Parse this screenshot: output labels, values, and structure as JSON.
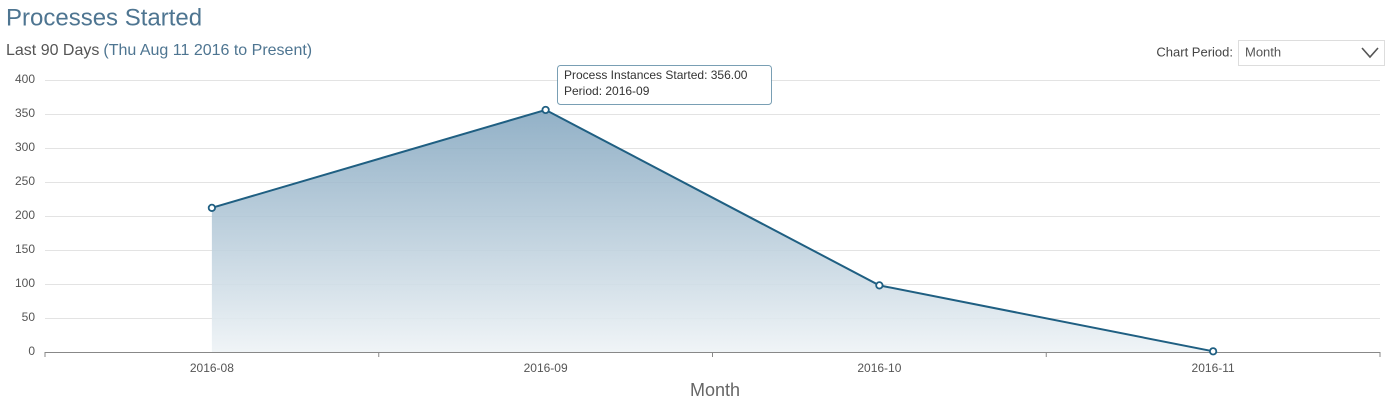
{
  "chart_data": {
    "type": "area",
    "title": "Processes Started",
    "subtitle": "Last 90 Days",
    "subtitle_range": "(Thu Aug 11 2016 to Present)",
    "period_label": "Chart Period:",
    "period_value": "Month",
    "x_label": "Month",
    "categories": [
      "2016-08",
      "2016-09",
      "2016-10",
      "2016-11"
    ],
    "series": [
      {
        "name": "Process Instances Started",
        "color": "#1f5f82",
        "values": [
          212,
          356,
          98,
          1
        ]
      }
    ],
    "tooltip": [
      "Process Instances Started: 356.00",
      "Period: 2016-09"
    ],
    "ylim": [
      0,
      400
    ],
    "yticks": [
      0,
      50,
      100,
      150,
      200,
      250,
      300,
      350,
      400
    ],
    "grid": true
  }
}
